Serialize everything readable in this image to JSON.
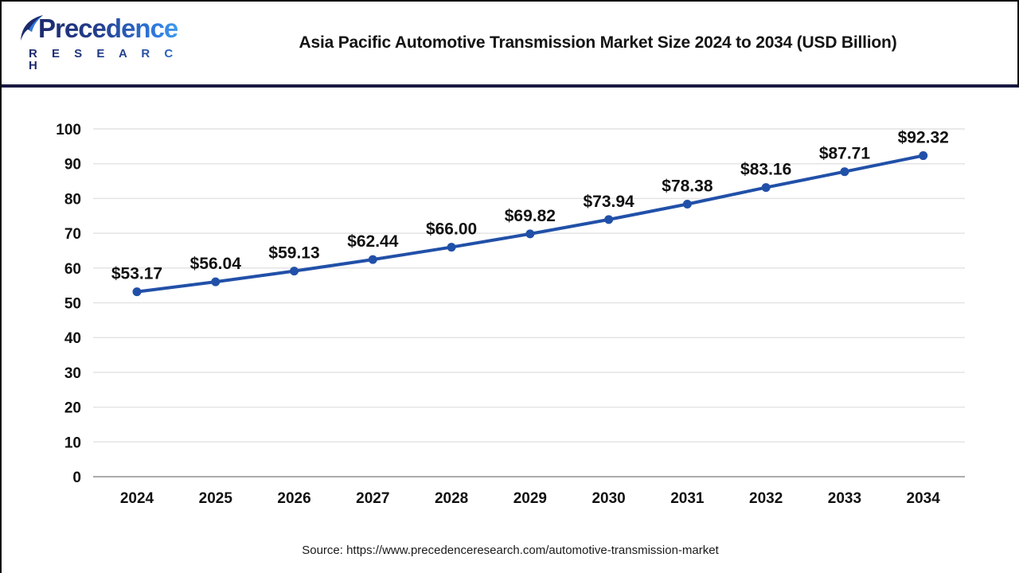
{
  "header": {
    "logo": {
      "name": "Precedence",
      "subtext": "R E S E A R C H"
    },
    "title": "Asia Pacific Automotive Transmission Market Size 2024 to 2034 (USD Billion)"
  },
  "chart_data": {
    "type": "line",
    "title": "Asia Pacific Automotive Transmission Market Size 2024 to 2034 (USD Billion)",
    "categories": [
      "2024",
      "2025",
      "2026",
      "2027",
      "2028",
      "2029",
      "2030",
      "2031",
      "2032",
      "2033",
      "2034"
    ],
    "values": [
      53.17,
      56.04,
      59.13,
      62.44,
      66.0,
      69.82,
      73.94,
      78.38,
      83.16,
      87.71,
      92.32
    ],
    "point_labels": [
      "$53.17",
      "$56.04",
      "$59.13",
      "$62.44",
      "$66.00",
      "$69.82",
      "$73.94",
      "$78.38",
      "$83.16",
      "$87.71",
      "$92.32"
    ],
    "xlabel": "",
    "ylabel": "",
    "ylim": [
      0,
      100
    ],
    "ytick_step": 10,
    "grid": true,
    "legend": "none",
    "line_color": "#2150A8",
    "grid_color": "#e4e4e4",
    "axis_color": "#ababab",
    "label_color": "#111111"
  },
  "footer": {
    "source": "Source: https://www.precedenceresearch.com/automotive-transmission-market"
  }
}
